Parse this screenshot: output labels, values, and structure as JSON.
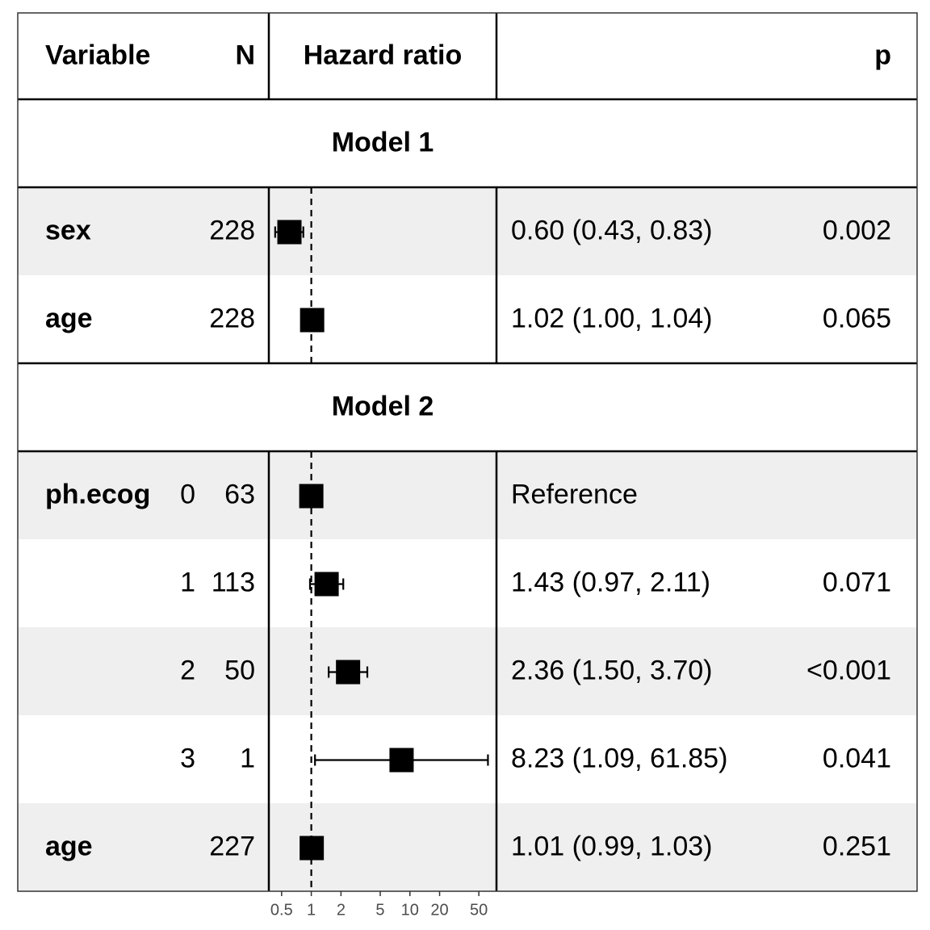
{
  "header": {
    "variable": "Variable",
    "n": "N",
    "hazard_ratio": "Hazard ratio",
    "p": "p"
  },
  "models": [
    {
      "title": "Model 1",
      "rows": [
        {
          "variable": "sex",
          "level": "",
          "n": "228",
          "hr": 0.6,
          "lo": 0.43,
          "hi": 0.83,
          "estimate_text": "0.60 (0.43, 0.83)",
          "p": "0.002",
          "shaded": true
        },
        {
          "variable": "age",
          "level": "",
          "n": "228",
          "hr": 1.02,
          "lo": 1.0,
          "hi": 1.04,
          "estimate_text": "1.02 (1.00, 1.04)",
          "p": "0.065",
          "shaded": false
        }
      ]
    },
    {
      "title": "Model 2",
      "rows": [
        {
          "variable": "ph.ecog",
          "level": "0",
          "n": "63",
          "hr": 1.0,
          "lo": 1.0,
          "hi": 1.0,
          "estimate_text": "Reference",
          "p": "",
          "shaded": true
        },
        {
          "variable": "",
          "level": "1",
          "n": "113",
          "hr": 1.43,
          "lo": 0.97,
          "hi": 2.11,
          "estimate_text": "1.43 (0.97, 2.11)",
          "p": "0.071",
          "shaded": false
        },
        {
          "variable": "",
          "level": "2",
          "n": "50",
          "hr": 2.36,
          "lo": 1.5,
          "hi": 3.7,
          "estimate_text": "2.36 (1.50, 3.70)",
          "p": "<0.001",
          "shaded": true
        },
        {
          "variable": "",
          "level": "3",
          "n": "1",
          "hr": 8.23,
          "lo": 1.09,
          "hi": 61.85,
          "estimate_text": "8.23 (1.09, 61.85)",
          "p": "0.041",
          "shaded": false
        },
        {
          "variable": "age",
          "level": "",
          "n": "227",
          "hr": 1.01,
          "lo": 0.99,
          "hi": 1.03,
          "estimate_text": "1.01 (0.99, 1.03)",
          "p": "0.251",
          "shaded": true
        }
      ]
    }
  ],
  "chart_data": {
    "type": "forest",
    "scale": "log",
    "reference_line": 1,
    "xticks": [
      0.5,
      1,
      2,
      5,
      10,
      20,
      50
    ],
    "xtick_labels": [
      "0.5",
      "1",
      "2",
      "5",
      "10",
      "20",
      "50"
    ],
    "xlim": [
      0.4,
      70
    ],
    "colors": {
      "shade": "#efefef",
      "line": "#000000",
      "tick_text": "#4d4d4d"
    }
  }
}
